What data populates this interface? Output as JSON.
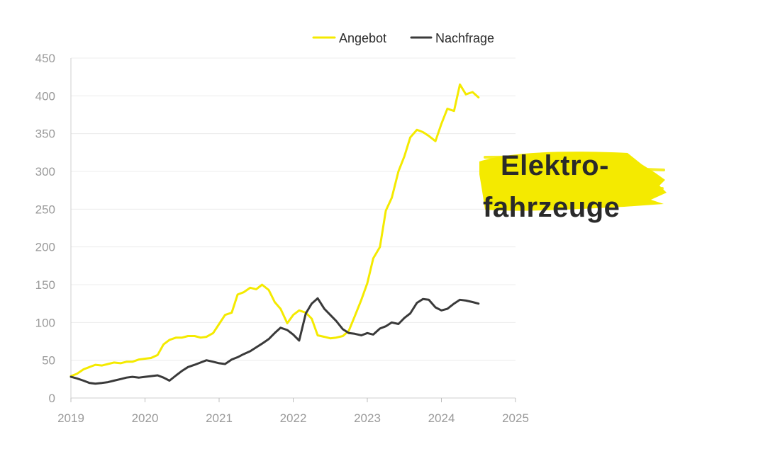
{
  "chart_data": {
    "type": "line",
    "title": "",
    "xlabel": "",
    "ylabel": "",
    "xlim": [
      2019,
      2025
    ],
    "ylim": [
      0,
      450
    ],
    "x_ticks": [
      "2019",
      "2020",
      "2021",
      "2022",
      "2023",
      "2024",
      "2025"
    ],
    "y_ticks": [
      "0",
      "50",
      "100",
      "150",
      "200",
      "250",
      "300",
      "350",
      "400",
      "450"
    ],
    "grid": "horizontal",
    "legend_position": "top",
    "annotation": {
      "lines": [
        "Elektro-",
        "fahrzeuge"
      ],
      "highlight_color": "#f4ea00"
    },
    "series": [
      {
        "name": "Angebot",
        "color": "#f4ea00",
        "points": [
          [
            2019.0,
            29
          ],
          [
            2019.08,
            32
          ],
          [
            2019.17,
            38
          ],
          [
            2019.25,
            41
          ],
          [
            2019.33,
            44
          ],
          [
            2019.42,
            43
          ],
          [
            2019.5,
            45
          ],
          [
            2019.58,
            47
          ],
          [
            2019.67,
            46
          ],
          [
            2019.75,
            48
          ],
          [
            2019.83,
            48
          ],
          [
            2019.92,
            51
          ],
          [
            2020.0,
            52
          ],
          [
            2020.08,
            53
          ],
          [
            2020.17,
            57
          ],
          [
            2020.25,
            71
          ],
          [
            2020.33,
            77
          ],
          [
            2020.42,
            80
          ],
          [
            2020.5,
            80
          ],
          [
            2020.58,
            82
          ],
          [
            2020.67,
            82
          ],
          [
            2020.75,
            80
          ],
          [
            2020.83,
            81
          ],
          [
            2020.92,
            86
          ],
          [
            2021.0,
            98
          ],
          [
            2021.08,
            110
          ],
          [
            2021.17,
            113
          ],
          [
            2021.25,
            137
          ],
          [
            2021.33,
            140
          ],
          [
            2021.42,
            146
          ],
          [
            2021.5,
            144
          ],
          [
            2021.58,
            150
          ],
          [
            2021.67,
            143
          ],
          [
            2021.75,
            127
          ],
          [
            2021.83,
            118
          ],
          [
            2021.92,
            99
          ],
          [
            2022.0,
            110
          ],
          [
            2022.08,
            116
          ],
          [
            2022.17,
            113
          ],
          [
            2022.25,
            105
          ],
          [
            2022.33,
            83
          ],
          [
            2022.42,
            81
          ],
          [
            2022.5,
            79
          ],
          [
            2022.58,
            80
          ],
          [
            2022.67,
            82
          ],
          [
            2022.75,
            89
          ],
          [
            2022.83,
            108
          ],
          [
            2022.92,
            130
          ],
          [
            2023.0,
            152
          ],
          [
            2023.08,
            185
          ],
          [
            2023.17,
            200
          ],
          [
            2023.25,
            248
          ],
          [
            2023.33,
            265
          ],
          [
            2023.42,
            300
          ],
          [
            2023.5,
            320
          ],
          [
            2023.58,
            345
          ],
          [
            2023.67,
            355
          ],
          [
            2023.75,
            352
          ],
          [
            2023.83,
            347
          ],
          [
            2023.92,
            340
          ],
          [
            2024.0,
            363
          ],
          [
            2024.08,
            383
          ],
          [
            2024.17,
            380
          ],
          [
            2024.25,
            415
          ],
          [
            2024.33,
            402
          ],
          [
            2024.42,
            405
          ],
          [
            2024.5,
            398
          ]
        ]
      },
      {
        "name": "Nachfrage",
        "color": "#3a3a3a",
        "points": [
          [
            2019.0,
            28
          ],
          [
            2019.08,
            26
          ],
          [
            2019.17,
            23
          ],
          [
            2019.25,
            20
          ],
          [
            2019.33,
            19
          ],
          [
            2019.42,
            20
          ],
          [
            2019.5,
            21
          ],
          [
            2019.58,
            23
          ],
          [
            2019.67,
            25
          ],
          [
            2019.75,
            27
          ],
          [
            2019.83,
            28
          ],
          [
            2019.92,
            27
          ],
          [
            2020.0,
            28
          ],
          [
            2020.08,
            29
          ],
          [
            2020.17,
            30
          ],
          [
            2020.25,
            27
          ],
          [
            2020.33,
            23
          ],
          [
            2020.42,
            30
          ],
          [
            2020.5,
            36
          ],
          [
            2020.58,
            41
          ],
          [
            2020.67,
            44
          ],
          [
            2020.75,
            47
          ],
          [
            2020.83,
            50
          ],
          [
            2020.92,
            48
          ],
          [
            2021.0,
            46
          ],
          [
            2021.08,
            45
          ],
          [
            2021.17,
            51
          ],
          [
            2021.25,
            54
          ],
          [
            2021.33,
            58
          ],
          [
            2021.42,
            62
          ],
          [
            2021.5,
            67
          ],
          [
            2021.58,
            72
          ],
          [
            2021.67,
            78
          ],
          [
            2021.75,
            86
          ],
          [
            2021.83,
            93
          ],
          [
            2021.92,
            90
          ],
          [
            2022.0,
            84
          ],
          [
            2022.08,
            76
          ],
          [
            2022.17,
            112
          ],
          [
            2022.25,
            125
          ],
          [
            2022.33,
            132
          ],
          [
            2022.42,
            118
          ],
          [
            2022.5,
            110
          ],
          [
            2022.58,
            102
          ],
          [
            2022.67,
            91
          ],
          [
            2022.75,
            86
          ],
          [
            2022.83,
            85
          ],
          [
            2022.92,
            83
          ],
          [
            2023.0,
            86
          ],
          [
            2023.08,
            84
          ],
          [
            2023.17,
            92
          ],
          [
            2023.25,
            95
          ],
          [
            2023.33,
            100
          ],
          [
            2023.42,
            98
          ],
          [
            2023.5,
            106
          ],
          [
            2023.58,
            112
          ],
          [
            2023.67,
            126
          ],
          [
            2023.75,
            131
          ],
          [
            2023.83,
            130
          ],
          [
            2023.92,
            120
          ],
          [
            2024.0,
            116
          ],
          [
            2024.08,
            118
          ],
          [
            2024.17,
            125
          ],
          [
            2024.25,
            130
          ],
          [
            2024.33,
            129
          ],
          [
            2024.42,
            127
          ],
          [
            2024.5,
            125
          ]
        ]
      }
    ]
  }
}
